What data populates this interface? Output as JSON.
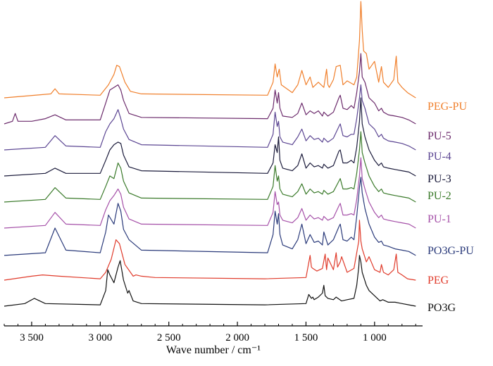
{
  "chart_data": {
    "type": "line",
    "title": "",
    "xlabel": "Wave number / cm⁻¹",
    "ylabel": "",
    "xlim": [
      3700,
      650
    ],
    "x_reversed": true,
    "x_ticks": [
      3500,
      3000,
      2500,
      2000,
      1500,
      1000
    ],
    "x_tick_labels": [
      "3 500",
      "3 000",
      "2 500",
      "2 000",
      "1 500",
      "1 000"
    ],
    "y_axis_shown": false,
    "grid": false,
    "legend": "labels at right end of each curve",
    "series": [
      {
        "name": "PEG-PU",
        "color": "#f07f2b",
        "offset": 8.0,
        "x": [
          3700,
          3360,
          3330,
          3300,
          3000,
          2940,
          2900,
          2880,
          2860,
          2820,
          2780,
          2700,
          1780,
          1740,
          1725,
          1710,
          1695,
          1680,
          1600,
          1560,
          1530,
          1500,
          1470,
          1450,
          1410,
          1370,
          1350,
          1340,
          1330,
          1300,
          1280,
          1250,
          1230,
          1200,
          1150,
          1130,
          1110,
          1100,
          1090,
          1080,
          1060,
          1040,
          1000,
          970,
          950,
          935,
          900,
          860,
          842,
          830,
          800,
          760,
          700
        ],
        "values": [
          0.0,
          0.15,
          0.35,
          0.15,
          0.1,
          0.5,
          0.9,
          1.25,
          1.2,
          0.6,
          0.25,
          0.15,
          0.1,
          0.6,
          1.3,
          0.8,
          1.1,
          0.5,
          0.2,
          0.5,
          1.05,
          0.5,
          0.8,
          0.4,
          0.6,
          0.4,
          1.1,
          0.5,
          0.4,
          0.7,
          1.2,
          1.25,
          0.5,
          0.65,
          0.5,
          0.8,
          2.2,
          3.7,
          2.6,
          1.8,
          1.7,
          1.1,
          1.4,
          0.6,
          1.2,
          0.6,
          0.4,
          0.7,
          1.6,
          0.6,
          0.4,
          0.2,
          0.0
        ]
      },
      {
        "name": "PU-5",
        "color": "#6b2a6b",
        "offset": 7.0,
        "x": [
          3700,
          3640,
          3620,
          3600,
          3500,
          3400,
          3330,
          3250,
          3000,
          2960,
          2930,
          2900,
          2870,
          2850,
          2830,
          2790,
          2700,
          1780,
          1740,
          1725,
          1710,
          1700,
          1690,
          1670,
          1600,
          1560,
          1530,
          1500,
          1470,
          1440,
          1410,
          1380,
          1370,
          1340,
          1300,
          1260,
          1250,
          1230,
          1200,
          1170,
          1150,
          1130,
          1110,
          1100,
          1090,
          1070,
          1040,
          1000,
          970,
          950,
          935,
          900,
          850,
          800,
          750,
          700
        ],
        "values": [
          0.0,
          0.1,
          0.4,
          0.1,
          0.1,
          0.2,
          0.35,
          0.15,
          0.15,
          0.8,
          1.3,
          1.4,
          1.5,
          1.3,
          0.9,
          0.4,
          0.25,
          0.2,
          0.6,
          1.3,
          0.8,
          1.2,
          0.6,
          0.3,
          0.25,
          0.4,
          0.8,
          0.35,
          0.5,
          0.4,
          0.5,
          0.3,
          0.45,
          0.3,
          0.45,
          1.0,
          1.1,
          0.6,
          0.55,
          0.7,
          0.6,
          1.2,
          2.0,
          2.7,
          1.8,
          1.6,
          1.0,
          0.8,
          0.5,
          0.6,
          0.45,
          0.35,
          0.3,
          0.25,
          0.15,
          0.0
        ]
      },
      {
        "name": "PU-4",
        "color": "#5b4592",
        "offset": 6.0,
        "x": [
          3700,
          3400,
          3330,
          3250,
          3000,
          2960,
          2930,
          2900,
          2870,
          2850,
          2830,
          2790,
          2700,
          1780,
          1740,
          1725,
          1710,
          1700,
          1690,
          1670,
          1600,
          1560,
          1530,
          1500,
          1470,
          1440,
          1410,
          1380,
          1370,
          1340,
          1300,
          1260,
          1250,
          1230,
          1200,
          1170,
          1150,
          1130,
          1110,
          1100,
          1090,
          1070,
          1040,
          1000,
          970,
          950,
          935,
          900,
          850,
          800,
          750,
          700
        ],
        "values": [
          0.0,
          0.1,
          0.55,
          0.15,
          0.1,
          0.7,
          1.0,
          1.2,
          1.55,
          1.2,
          0.8,
          0.4,
          0.2,
          0.1,
          0.6,
          1.45,
          0.9,
          1.1,
          0.5,
          0.3,
          0.2,
          0.5,
          0.8,
          0.35,
          0.55,
          0.4,
          0.45,
          0.3,
          0.45,
          0.3,
          0.45,
          0.9,
          1.0,
          0.55,
          0.5,
          0.6,
          0.6,
          1.2,
          2.0,
          2.5,
          1.9,
          1.6,
          1.0,
          0.8,
          0.5,
          0.6,
          0.45,
          0.35,
          0.3,
          0.25,
          0.15,
          0.0
        ]
      },
      {
        "name": "PU-3",
        "color": "#1a1a3a",
        "offset": 5.0,
        "x": [
          3700,
          3400,
          3330,
          3250,
          3000,
          2960,
          2930,
          2900,
          2870,
          2850,
          2830,
          2790,
          2700,
          1780,
          1740,
          1725,
          1710,
          1700,
          1690,
          1670,
          1600,
          1560,
          1530,
          1500,
          1470,
          1440,
          1410,
          1380,
          1370,
          1340,
          1300,
          1260,
          1250,
          1230,
          1200,
          1170,
          1150,
          1130,
          1110,
          1100,
          1090,
          1070,
          1040,
          1000,
          970,
          950,
          935,
          900,
          850,
          800,
          750,
          700
        ],
        "values": [
          0.0,
          0.1,
          0.3,
          0.1,
          0.1,
          0.6,
          1.0,
          1.2,
          1.3,
          1.25,
          0.8,
          0.35,
          0.2,
          0.1,
          0.5,
          1.2,
          0.9,
          1.5,
          0.6,
          0.3,
          0.2,
          0.4,
          0.85,
          0.3,
          0.5,
          0.35,
          0.4,
          0.3,
          0.45,
          0.3,
          0.4,
          0.95,
          1.0,
          0.5,
          0.5,
          0.6,
          0.5,
          1.1,
          2.1,
          3.0,
          2.0,
          1.5,
          1.0,
          0.6,
          0.4,
          0.5,
          0.35,
          0.3,
          0.25,
          0.2,
          0.15,
          0.0
        ]
      },
      {
        "name": "PU-2",
        "color": "#3a7a2a",
        "offset": 4.0,
        "x": [
          3700,
          3400,
          3330,
          3250,
          3000,
          2960,
          2930,
          2900,
          2870,
          2850,
          2830,
          2790,
          2700,
          1780,
          1740,
          1725,
          1710,
          1700,
          1690,
          1670,
          1600,
          1560,
          1530,
          1500,
          1470,
          1440,
          1410,
          1380,
          1370,
          1340,
          1300,
          1260,
          1250,
          1230,
          1200,
          1170,
          1150,
          1130,
          1110,
          1100,
          1090,
          1070,
          1040,
          1000,
          970,
          950,
          935,
          900,
          850,
          800,
          750,
          700
        ],
        "values": [
          0.0,
          0.1,
          0.55,
          0.15,
          0.1,
          0.6,
          1.0,
          0.9,
          1.5,
          1.3,
          0.8,
          0.35,
          0.15,
          0.1,
          0.6,
          1.4,
          0.8,
          1.0,
          0.5,
          0.3,
          0.2,
          0.4,
          0.7,
          0.3,
          0.5,
          0.35,
          0.4,
          0.3,
          0.45,
          0.3,
          0.4,
          0.8,
          0.9,
          0.5,
          0.5,
          0.55,
          0.5,
          1.1,
          2.0,
          2.7,
          1.9,
          1.5,
          1.0,
          0.6,
          0.4,
          0.5,
          0.35,
          0.3,
          0.25,
          0.2,
          0.15,
          0.0
        ]
      },
      {
        "name": "PU-1",
        "color": "#a550a8",
        "offset": 3.0,
        "x": [
          3700,
          3400,
          3330,
          3250,
          3000,
          2960,
          2930,
          2900,
          2870,
          2850,
          2830,
          2790,
          2700,
          1780,
          1740,
          1725,
          1710,
          1700,
          1690,
          1670,
          1600,
          1560,
          1530,
          1500,
          1470,
          1440,
          1410,
          1380,
          1370,
          1340,
          1300,
          1260,
          1250,
          1230,
          1200,
          1170,
          1150,
          1130,
          1110,
          1100,
          1090,
          1070,
          1040,
          1000,
          970,
          950,
          935,
          900,
          850,
          800,
          750,
          700
        ],
        "values": [
          0.0,
          0.1,
          0.6,
          0.15,
          0.1,
          0.7,
          1.05,
          1.25,
          1.5,
          1.3,
          0.8,
          0.35,
          0.15,
          0.1,
          0.6,
          1.4,
          0.9,
          1.0,
          0.5,
          0.3,
          0.2,
          0.4,
          0.75,
          0.3,
          0.5,
          0.35,
          0.4,
          0.3,
          0.45,
          0.3,
          0.4,
          0.85,
          0.95,
          0.5,
          0.5,
          0.55,
          0.5,
          1.1,
          2.0,
          2.7,
          1.9,
          1.5,
          1.0,
          0.6,
          0.4,
          0.5,
          0.35,
          0.3,
          0.25,
          0.2,
          0.15,
          0.0
        ]
      },
      {
        "name": "PO3G-PU",
        "color": "#2a3a7a",
        "offset": 1.95,
        "x": [
          3700,
          3400,
          3330,
          3250,
          3000,
          2960,
          2940,
          2900,
          2870,
          2850,
          2830,
          2790,
          2700,
          1780,
          1740,
          1725,
          1710,
          1700,
          1690,
          1670,
          1600,
          1560,
          1530,
          1500,
          1470,
          1440,
          1410,
          1380,
          1370,
          1340,
          1300,
          1260,
          1250,
          1230,
          1200,
          1170,
          1150,
          1130,
          1110,
          1100,
          1090,
          1070,
          1040,
          1000,
          970,
          950,
          935,
          900,
          850,
          800,
          750,
          700
        ],
        "values": [
          0.0,
          0.1,
          1.05,
          0.2,
          0.1,
          0.9,
          1.55,
          1.2,
          2.0,
          1.7,
          1.0,
          0.6,
          0.2,
          0.1,
          0.8,
          1.7,
          1.2,
          1.6,
          0.8,
          0.4,
          0.25,
          0.6,
          1.2,
          0.45,
          0.8,
          0.5,
          0.55,
          0.4,
          0.9,
          0.4,
          0.6,
          1.1,
          1.2,
          0.6,
          0.55,
          0.7,
          0.6,
          1.5,
          2.6,
          3.0,
          2.4,
          1.8,
          1.2,
          0.7,
          0.5,
          0.55,
          0.4,
          0.35,
          0.25,
          0.2,
          0.15,
          0.0
        ]
      },
      {
        "name": "PEG",
        "color": "#e03a2a",
        "offset": 1.0,
        "x": [
          3700,
          3500,
          3420,
          3300,
          3000,
          2960,
          2920,
          2885,
          2860,
          2820,
          2760,
          2740,
          2700,
          2600,
          1800,
          1500,
          1470,
          1460,
          1450,
          1420,
          1380,
          1360,
          1350,
          1340,
          1300,
          1280,
          1270,
          1250,
          1240,
          1200,
          1150,
          1130,
          1115,
          1110,
          1100,
          1090,
          1060,
          1040,
          1000,
          960,
          950,
          935,
          900,
          860,
          842,
          830,
          800,
          760,
          700
        ],
        "values": [
          0.0,
          0.15,
          0.2,
          0.15,
          0.05,
          0.3,
          0.8,
          1.55,
          1.4,
          0.6,
          0.15,
          0.2,
          0.15,
          0.1,
          0.05,
          0.1,
          0.95,
          0.5,
          0.45,
          0.35,
          0.45,
          1.0,
          0.4,
          0.85,
          0.4,
          1.05,
          0.5,
          0.7,
          0.9,
          0.3,
          0.45,
          1.05,
          1.5,
          2.3,
          1.5,
          1.2,
          0.7,
          0.9,
          0.4,
          0.3,
          0.6,
          0.3,
          0.2,
          0.4,
          1.0,
          0.3,
          0.2,
          0.05,
          0.0
        ]
      },
      {
        "name": "PO3G",
        "color": "#111111",
        "offset": 0.0,
        "x": [
          3700,
          3550,
          3480,
          3400,
          3000,
          2960,
          2945,
          2930,
          2900,
          2870,
          2855,
          2830,
          2800,
          2790,
          2760,
          2700,
          1800,
          1500,
          1480,
          1460,
          1450,
          1440,
          1410,
          1380,
          1370,
          1360,
          1340,
          1300,
          1280,
          1240,
          1200,
          1150,
          1130,
          1115,
          1110,
          1100,
          1090,
          1060,
          1040,
          1000,
          960,
          940,
          900,
          850,
          800,
          750,
          700
        ],
        "values": [
          0.0,
          0.1,
          0.3,
          0.1,
          0.05,
          0.6,
          1.4,
          1.2,
          0.9,
          1.5,
          1.75,
          1.0,
          0.5,
          0.6,
          0.2,
          0.1,
          0.05,
          0.1,
          0.45,
          0.3,
          0.35,
          0.25,
          0.35,
          0.5,
          0.8,
          0.4,
          0.3,
          0.25,
          0.35,
          0.2,
          0.25,
          0.3,
          0.8,
          1.5,
          1.95,
          1.7,
          1.3,
          0.8,
          0.6,
          0.4,
          0.2,
          0.25,
          0.15,
          0.15,
          0.1,
          0.05,
          0.0
        ]
      }
    ]
  }
}
